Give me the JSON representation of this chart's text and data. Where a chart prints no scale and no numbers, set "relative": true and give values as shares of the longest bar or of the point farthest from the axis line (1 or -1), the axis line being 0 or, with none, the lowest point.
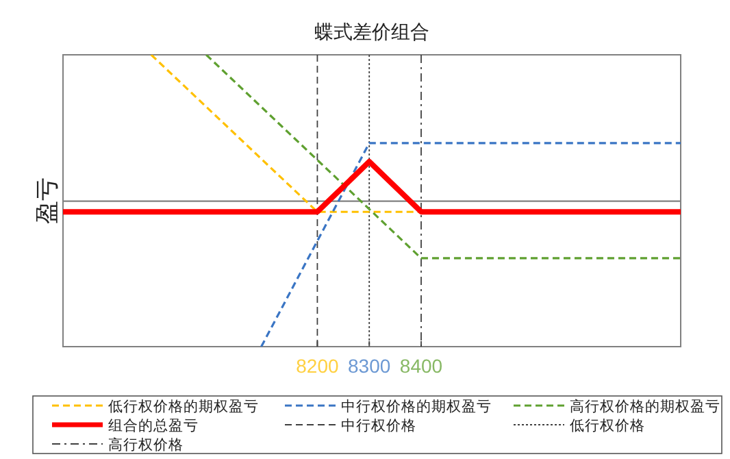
{
  "chart_data": {
    "type": "line",
    "title": "蝶式差价组合",
    "ylabel": "盈亏",
    "relative": true,
    "legend": "bottom",
    "xlim": [
      7710,
      8900
    ],
    "xticks": [
      8200,
      8300,
      8400
    ],
    "series": [
      {
        "name": "低行权价格的期权盈亏",
        "color": "#ffc000",
        "line_style": "dashed",
        "x": [
          7880,
          8200,
          8900
        ],
        "values": [
          1,
          -0.073,
          -0.073
        ]
      },
      {
        "name": "中行权价格的期权盈亏",
        "color": "#3a75c4",
        "line_style": "dashed",
        "x": [
          8092,
          8300,
          8900
        ],
        "values": [
          -0.994,
          0.397,
          0.397
        ]
      },
      {
        "name": "高行权价格的期权盈亏",
        "color": "#5fa030",
        "line_style": "dashed",
        "x": [
          7986,
          8400,
          8900
        ],
        "values": [
          1,
          -0.39,
          -0.39
        ]
      },
      {
        "name": "组合的总盈亏",
        "color": "#ff0000",
        "line_style": "solid",
        "x": [
          7710,
          8200,
          8300,
          8400,
          8900
        ],
        "values": [
          -0.073,
          -0.073,
          0.27,
          -0.073,
          -0.073
        ]
      }
    ],
    "ref_lines": [
      {
        "axis": "x",
        "value": 8200,
        "label": "中行权价格",
        "color": "#404040",
        "line_style": "dashed"
      },
      {
        "axis": "x",
        "value": 8300,
        "label": "低行权价格",
        "color": "#404040",
        "line_style": "dotted"
      },
      {
        "axis": "x",
        "value": 8400,
        "label": "高行权价格",
        "color": "#404040",
        "line_style": "dashdot"
      }
    ]
  }
}
